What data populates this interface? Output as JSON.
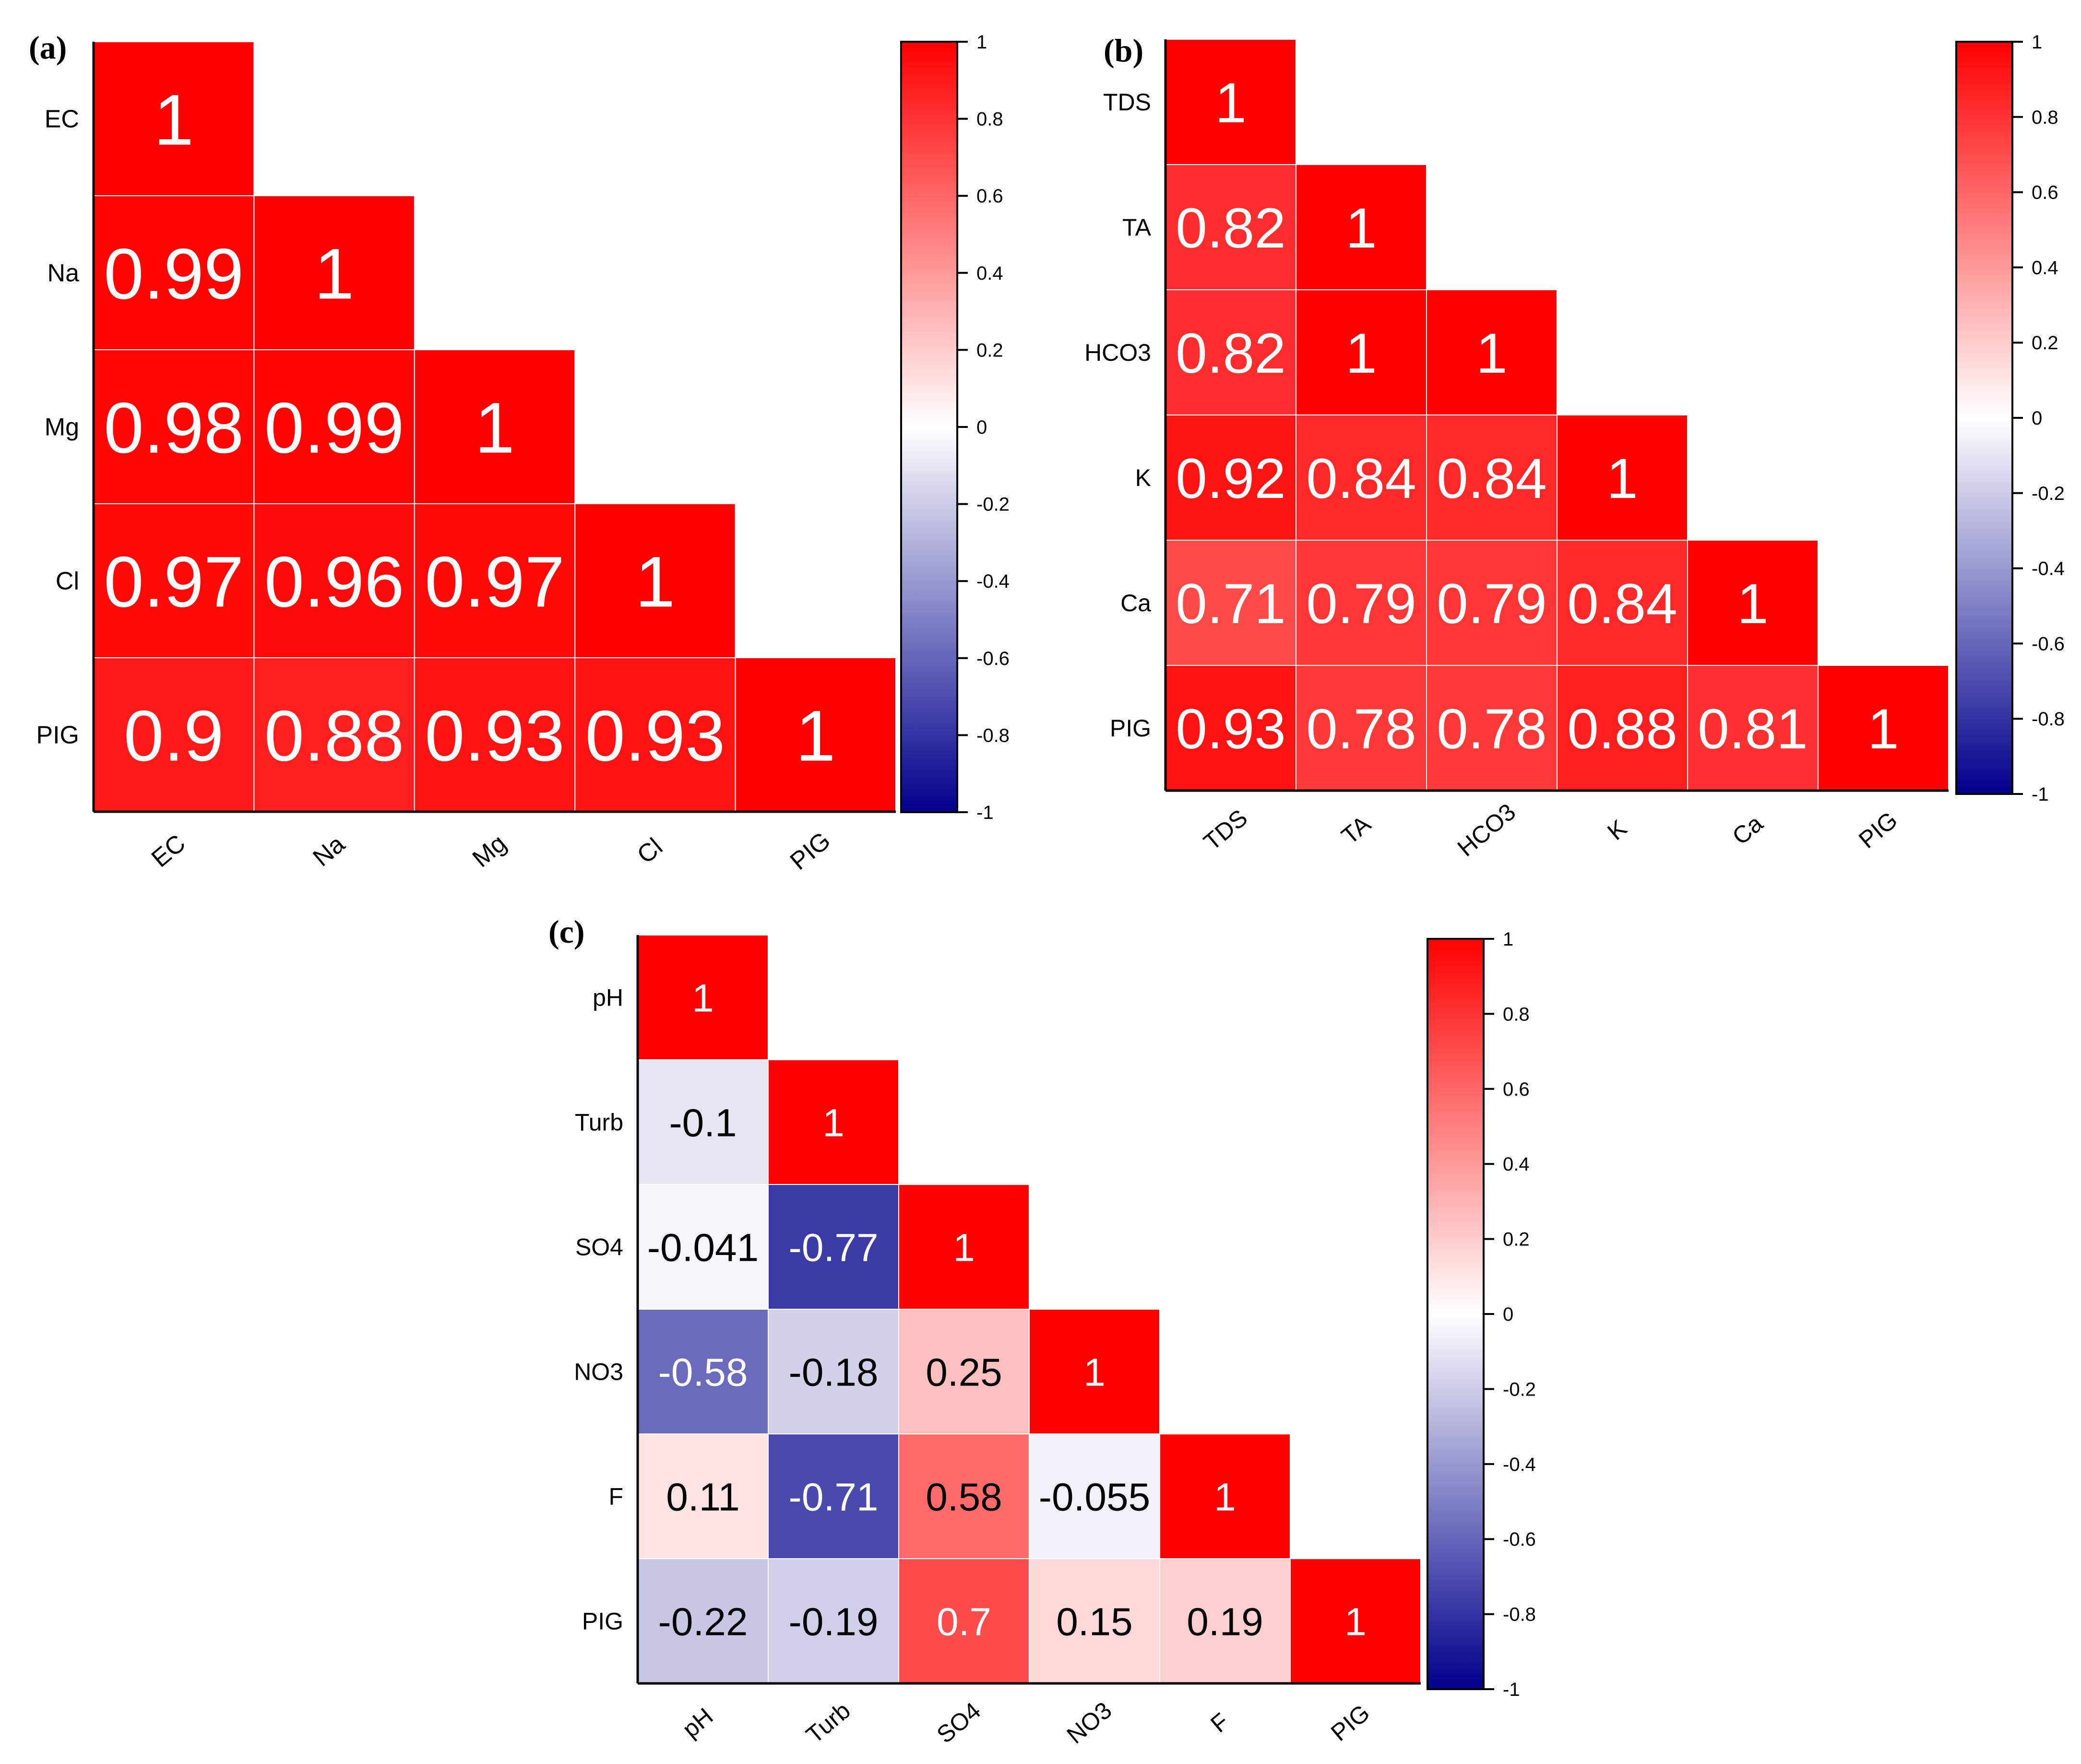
{
  "chart_data": [
    {
      "type": "heatmap",
      "panel_label": "(a)",
      "variables": [
        "EC",
        "Na",
        "Mg",
        "Cl",
        "PIG"
      ],
      "matrix": [
        [
          1
        ],
        [
          0.99,
          1
        ],
        [
          0.98,
          0.99,
          1
        ],
        [
          0.97,
          0.96,
          0.97,
          1
        ],
        [
          0.9,
          0.88,
          0.93,
          0.93,
          1
        ]
      ],
      "colorbar": {
        "range": [
          -1,
          1
        ],
        "ticks": [
          "1",
          "0.8",
          "0.6",
          "0.4",
          "0.2",
          "0",
          "-0.2",
          "-0.4",
          "-0.6",
          "-0.8",
          "-1"
        ]
      }
    },
    {
      "type": "heatmap",
      "panel_label": "(b)",
      "variables": [
        "TDS",
        "TA",
        "HCO3",
        "K",
        "Ca",
        "PIG"
      ],
      "matrix": [
        [
          1
        ],
        [
          0.82,
          1
        ],
        [
          0.82,
          1,
          1
        ],
        [
          0.92,
          0.84,
          0.84,
          1
        ],
        [
          0.71,
          0.79,
          0.79,
          0.84,
          1
        ],
        [
          0.93,
          0.78,
          0.78,
          0.88,
          0.81,
          1
        ]
      ],
      "colorbar": {
        "range": [
          -1,
          1
        ],
        "ticks": [
          "1",
          "0.8",
          "0.6",
          "0.4",
          "0.2",
          "0",
          "-0.2",
          "-0.4",
          "-0.6",
          "-0.8",
          "-1"
        ]
      }
    },
    {
      "type": "heatmap",
      "panel_label": "(c)",
      "variables": [
        "pH",
        "Turb",
        "SO4",
        "NO3",
        "F",
        "PIG"
      ],
      "matrix": [
        [
          1
        ],
        [
          -0.1,
          1
        ],
        [
          -0.041,
          -0.77,
          1
        ],
        [
          -0.58,
          -0.18,
          0.25,
          1
        ],
        [
          0.11,
          -0.71,
          0.58,
          -0.055,
          1
        ],
        [
          -0.22,
          -0.19,
          0.7,
          0.15,
          0.19,
          1
        ]
      ],
      "colorbar": {
        "range": [
          -1,
          1
        ],
        "ticks": [
          "1",
          "0.8",
          "0.6",
          "0.4",
          "0.2",
          "0",
          "-0.2",
          "-0.4",
          "-0.6",
          "-0.8",
          "-1"
        ]
      }
    }
  ],
  "colors": {
    "positive": "#ff0000",
    "neutral": "#ffffff",
    "negative": "#00008b",
    "axis": "#000000",
    "grid": "#ffffff"
  }
}
